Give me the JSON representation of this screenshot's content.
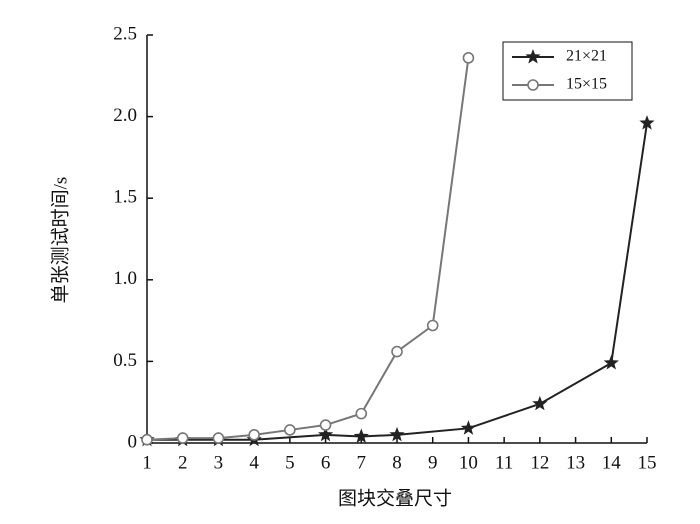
{
  "chart_data": {
    "type": "line",
    "xlabel": "图块交叠尺寸",
    "ylabel": "单张测试时间/s",
    "xlim": [
      1,
      15
    ],
    "xticks": [
      1,
      2,
      3,
      4,
      5,
      6,
      7,
      8,
      9,
      10,
      11,
      12,
      13,
      14,
      15
    ],
    "ylim": [
      0,
      2.5
    ],
    "yticks": [
      0,
      0.5,
      {
        "value": 1,
        "label": "1.0"
      },
      1.5,
      {
        "value": 2,
        "label": "2.0"
      },
      2.5
    ],
    "legend": "upper right",
    "series": [
      {
        "name": "21×21",
        "color": "#222222",
        "marker": "star",
        "x": [
          1,
          2,
          3,
          4,
          6,
          7,
          8,
          10,
          12,
          14,
          15
        ],
        "values": [
          0.02,
          0.02,
          0.02,
          0.02,
          0.05,
          0.04,
          0.05,
          0.09,
          0.24,
          0.49,
          1.96
        ]
      },
      {
        "name": "15×15",
        "color": "#777777",
        "marker": "circle",
        "x": [
          1,
          2,
          3,
          4,
          5,
          6,
          7,
          8,
          9,
          10
        ],
        "values": [
          0.02,
          0.03,
          0.03,
          0.05,
          0.08,
          0.11,
          0.18,
          0.56,
          0.72,
          2.36
        ]
      }
    ]
  }
}
